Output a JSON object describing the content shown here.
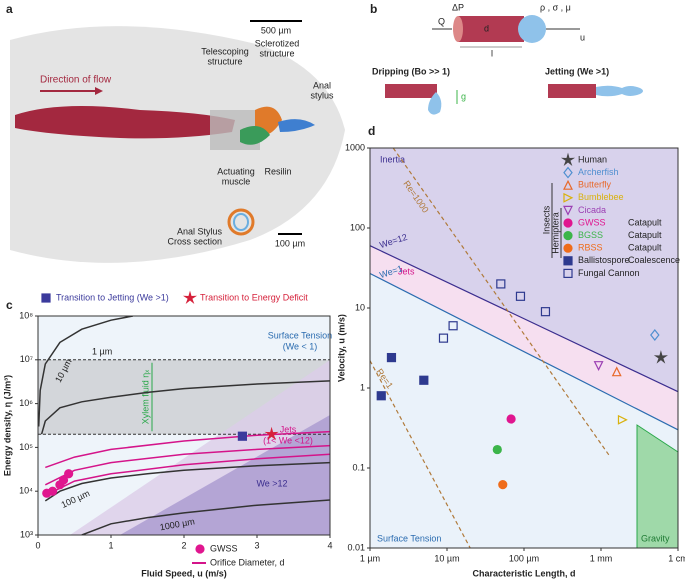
{
  "panel_a": {
    "label": "a",
    "scale": "500 µm",
    "flow": "Direction of flow",
    "telescoping": [
      "Telescoping",
      "structure"
    ],
    "sclerotized": [
      "Sclerotized",
      "structure"
    ],
    "stylus": [
      "Anal",
      "stylus"
    ],
    "muscle": [
      "Actuating",
      "muscle"
    ],
    "resilin": "Resilin",
    "cross": [
      "Anal Stylus",
      "Cross section"
    ],
    "cross_scale": "100 µm"
  },
  "panel_b": {
    "label": "b",
    "pressure": "ΔP",
    "flow": "Q",
    "diameter": "d",
    "length": "l",
    "props": "ρ , σ , μ",
    "speed": "u",
    "dripping": "Dripping (Bo >> 1)",
    "gravity": "g",
    "jetting": "Jetting (We >1)"
  },
  "chart_data": [
    {
      "type": "line",
      "panel": "c",
      "xlabel": "Fluid Speed, u (m/s)",
      "ylabel": "Energy density, η (J/m³)",
      "log_y": true,
      "xlim": [
        0,
        4
      ],
      "ylim": [
        1000,
        100000000
      ],
      "xticks": [
        0,
        1,
        2,
        3,
        4
      ],
      "yticks": [
        {
          "value": 1000,
          "label": "10³"
        },
        {
          "value": 10000,
          "label": "10⁴"
        },
        {
          "value": 100000,
          "label": "10⁵"
        },
        {
          "value": 1000000,
          "label": "10⁶"
        },
        {
          "value": 10000000,
          "label": "10⁷"
        },
        {
          "value": 100000000,
          "label": "10⁸"
        }
      ],
      "reference_lines": [
        10000000,
        200000
      ],
      "regions": {
        "surface": [
          "Surface Tension",
          "(We < 1)"
        ],
        "xylem": "Xylem fluid ηₓ",
        "jets": [
          "Jets",
          "(1< We <12)"
        ],
        "we12": "We >12"
      },
      "series": [
        {
          "label": "1 µm",
          "color": "#333333",
          "x": [
            0.01,
            0.03,
            0.1,
            0.3,
            0.6,
            1.0,
            1.3
          ],
          "values": [
            300000,
            2000000,
            8000000,
            25000000,
            50000000,
            80000000,
            100000000
          ]
        },
        {
          "label": "10 µm",
          "color": "#333333",
          "x": [
            0.05,
            0.1,
            0.3,
            0.6,
            1,
            1.5,
            2,
            3,
            4
          ],
          "values": [
            200000,
            400000,
            800000,
            1100000,
            1400000,
            1800000,
            2200000,
            2800000,
            3300000
          ]
        },
        {
          "label": "100 µm",
          "color": "#333333",
          "x": [
            0.1,
            0.3,
            0.6,
            1,
            1.5,
            2,
            3,
            4
          ],
          "values": [
            6000,
            10000,
            15000,
            20000,
            25000,
            30000,
            38000,
            45000
          ]
        },
        {
          "label": "1000 µm",
          "color": "#333333",
          "x": [
            0.6,
            1,
            1.5,
            2,
            3,
            4
          ],
          "values": [
            1000,
            1800,
            2500,
            3200,
            4800,
            6300
          ]
        },
        {
          "name": "Orifice Diameter, d",
          "color": "#d4148a",
          "x": [
            0.1,
            0.5,
            1,
            2,
            3,
            4
          ],
          "values": [
            35000,
            60000,
            90000,
            140000,
            190000,
            230000
          ]
        },
        {
          "color": "#d4148a",
          "x": [
            0.1,
            0.5,
            1,
            2,
            3,
            4
          ],
          "values": [
            14000,
            30000,
            45000,
            70000,
            90000,
            110000
          ]
        },
        {
          "color": "#d4148a",
          "x": [
            0.1,
            0.5,
            1,
            2,
            3,
            4
          ],
          "values": [
            8000,
            17000,
            25000,
            40000,
            55000,
            70000
          ]
        },
        {
          "name": "Transition to Jetting (We >1)",
          "marker": "square",
          "color": "#3b3a9c",
          "x": [
            2.8
          ],
          "values": [
            180000
          ]
        },
        {
          "name": "Transition to Energy Deficit",
          "marker": "star",
          "color": "#d6213b",
          "x": [
            3.2
          ],
          "values": [
            200000
          ]
        },
        {
          "name": "GWSS",
          "marker": "circle",
          "color": "#e0168f",
          "x": [
            0.12,
            0.2,
            0.3,
            0.35,
            0.42
          ],
          "values": [
            9000,
            10000,
            14000,
            18000,
            25000
          ]
        }
      ]
    },
    {
      "type": "scatter",
      "panel": "d",
      "xlabel": "Characteristic Length, d",
      "ylabel": "Velocity, u (m/s)",
      "log_x": true,
      "log_y": true,
      "xlim": [
        1e-06,
        0.01
      ],
      "ylim": [
        0.01,
        1000
      ],
      "xticks": [
        {
          "value": 1e-06,
          "label": "1 µm"
        },
        {
          "value": 1e-05,
          "label": "10 µm"
        },
        {
          "value": 0.0001,
          "label": "100 µm"
        },
        {
          "value": 0.001,
          "label": "1 mm"
        },
        {
          "value": 0.01,
          "label": "1 cm"
        }
      ],
      "yticks": [
        0.01,
        0.1,
        1,
        10,
        100,
        1000
      ],
      "regions": {
        "inertia": "Inertia",
        "jets": "Jets",
        "surface": "Surface Tension",
        "gravity": "Gravity"
      },
      "group_labels": [
        "Insects",
        "Hemiptera"
      ],
      "lines": [
        {
          "label": "We=12",
          "color": "#3b2e8f",
          "x": [
            1e-06,
            0.01
          ],
          "values": [
            60,
            0.9
          ]
        },
        {
          "label": "We=1",
          "color": "#2b6cb0",
          "x": [
            1e-06,
            0.01
          ],
          "values": [
            27,
            0.3
          ]
        },
        {
          "label": "Re=1000",
          "color": "#b07a3a",
          "dashed": true,
          "x": [
            2e-06,
            0.0013
          ],
          "values": [
            1000,
            0.14
          ]
        },
        {
          "label": "Re=1",
          "color": "#b07a3a",
          "dashed": true,
          "x": [
            1e-06,
            2e-05
          ],
          "values": [
            2.2,
            0.01
          ]
        }
      ],
      "series": [
        {
          "name": "Human",
          "marker": "star",
          "filled": true,
          "color": "#444444",
          "x": [
            0.006
          ],
          "values": [
            2.4
          ]
        },
        {
          "name": "Archerfish",
          "marker": "diamond",
          "color": "#4f8fd0",
          "x": [
            0.005
          ],
          "values": [
            4.6
          ]
        },
        {
          "name": "Butterfly",
          "marker": "tri-up",
          "color": "#e8692a",
          "x": [
            0.0016
          ],
          "values": [
            1.6
          ]
        },
        {
          "name": "Bumblebee",
          "marker": "tri-right",
          "color": "#d9b20e",
          "x": [
            0.0019
          ],
          "values": [
            0.4
          ]
        },
        {
          "name": "Cicada",
          "marker": "tri-down",
          "color": "#9b3fb3",
          "x": [
            0.00093
          ],
          "values": [
            1.9
          ]
        },
        {
          "name": "GWSS",
          "marker": "circle",
          "filled": true,
          "color": "#e0168f",
          "note": "Catapult",
          "x": [
            6.8e-05
          ],
          "values": [
            0.41
          ]
        },
        {
          "name": "BGSS",
          "marker": "circle",
          "filled": true,
          "color": "#3cb54a",
          "note": "Catapult",
          "x": [
            4.5e-05
          ],
          "values": [
            0.17
          ]
        },
        {
          "name": "RBSS",
          "marker": "circle",
          "filled": true,
          "color": "#ef6c1a",
          "note": "Catapult",
          "x": [
            5.3e-05
          ],
          "values": [
            0.062
          ]
        },
        {
          "name": "Ballistospore",
          "marker": "square",
          "filled": true,
          "color": "#2e3a8f",
          "note": "Coalescence",
          "x": [
            1.4e-06,
            1.9e-06,
            5e-06
          ],
          "values": [
            0.8,
            2.4,
            1.25
          ]
        },
        {
          "name": "Fungal Cannon",
          "marker": "square",
          "color": "#2e3a8f",
          "x": [
            5e-05,
            9e-05,
            1.2e-05,
            0.00019,
            9e-06
          ],
          "values": [
            20,
            14,
            6,
            9,
            4.2
          ]
        }
      ]
    }
  ]
}
